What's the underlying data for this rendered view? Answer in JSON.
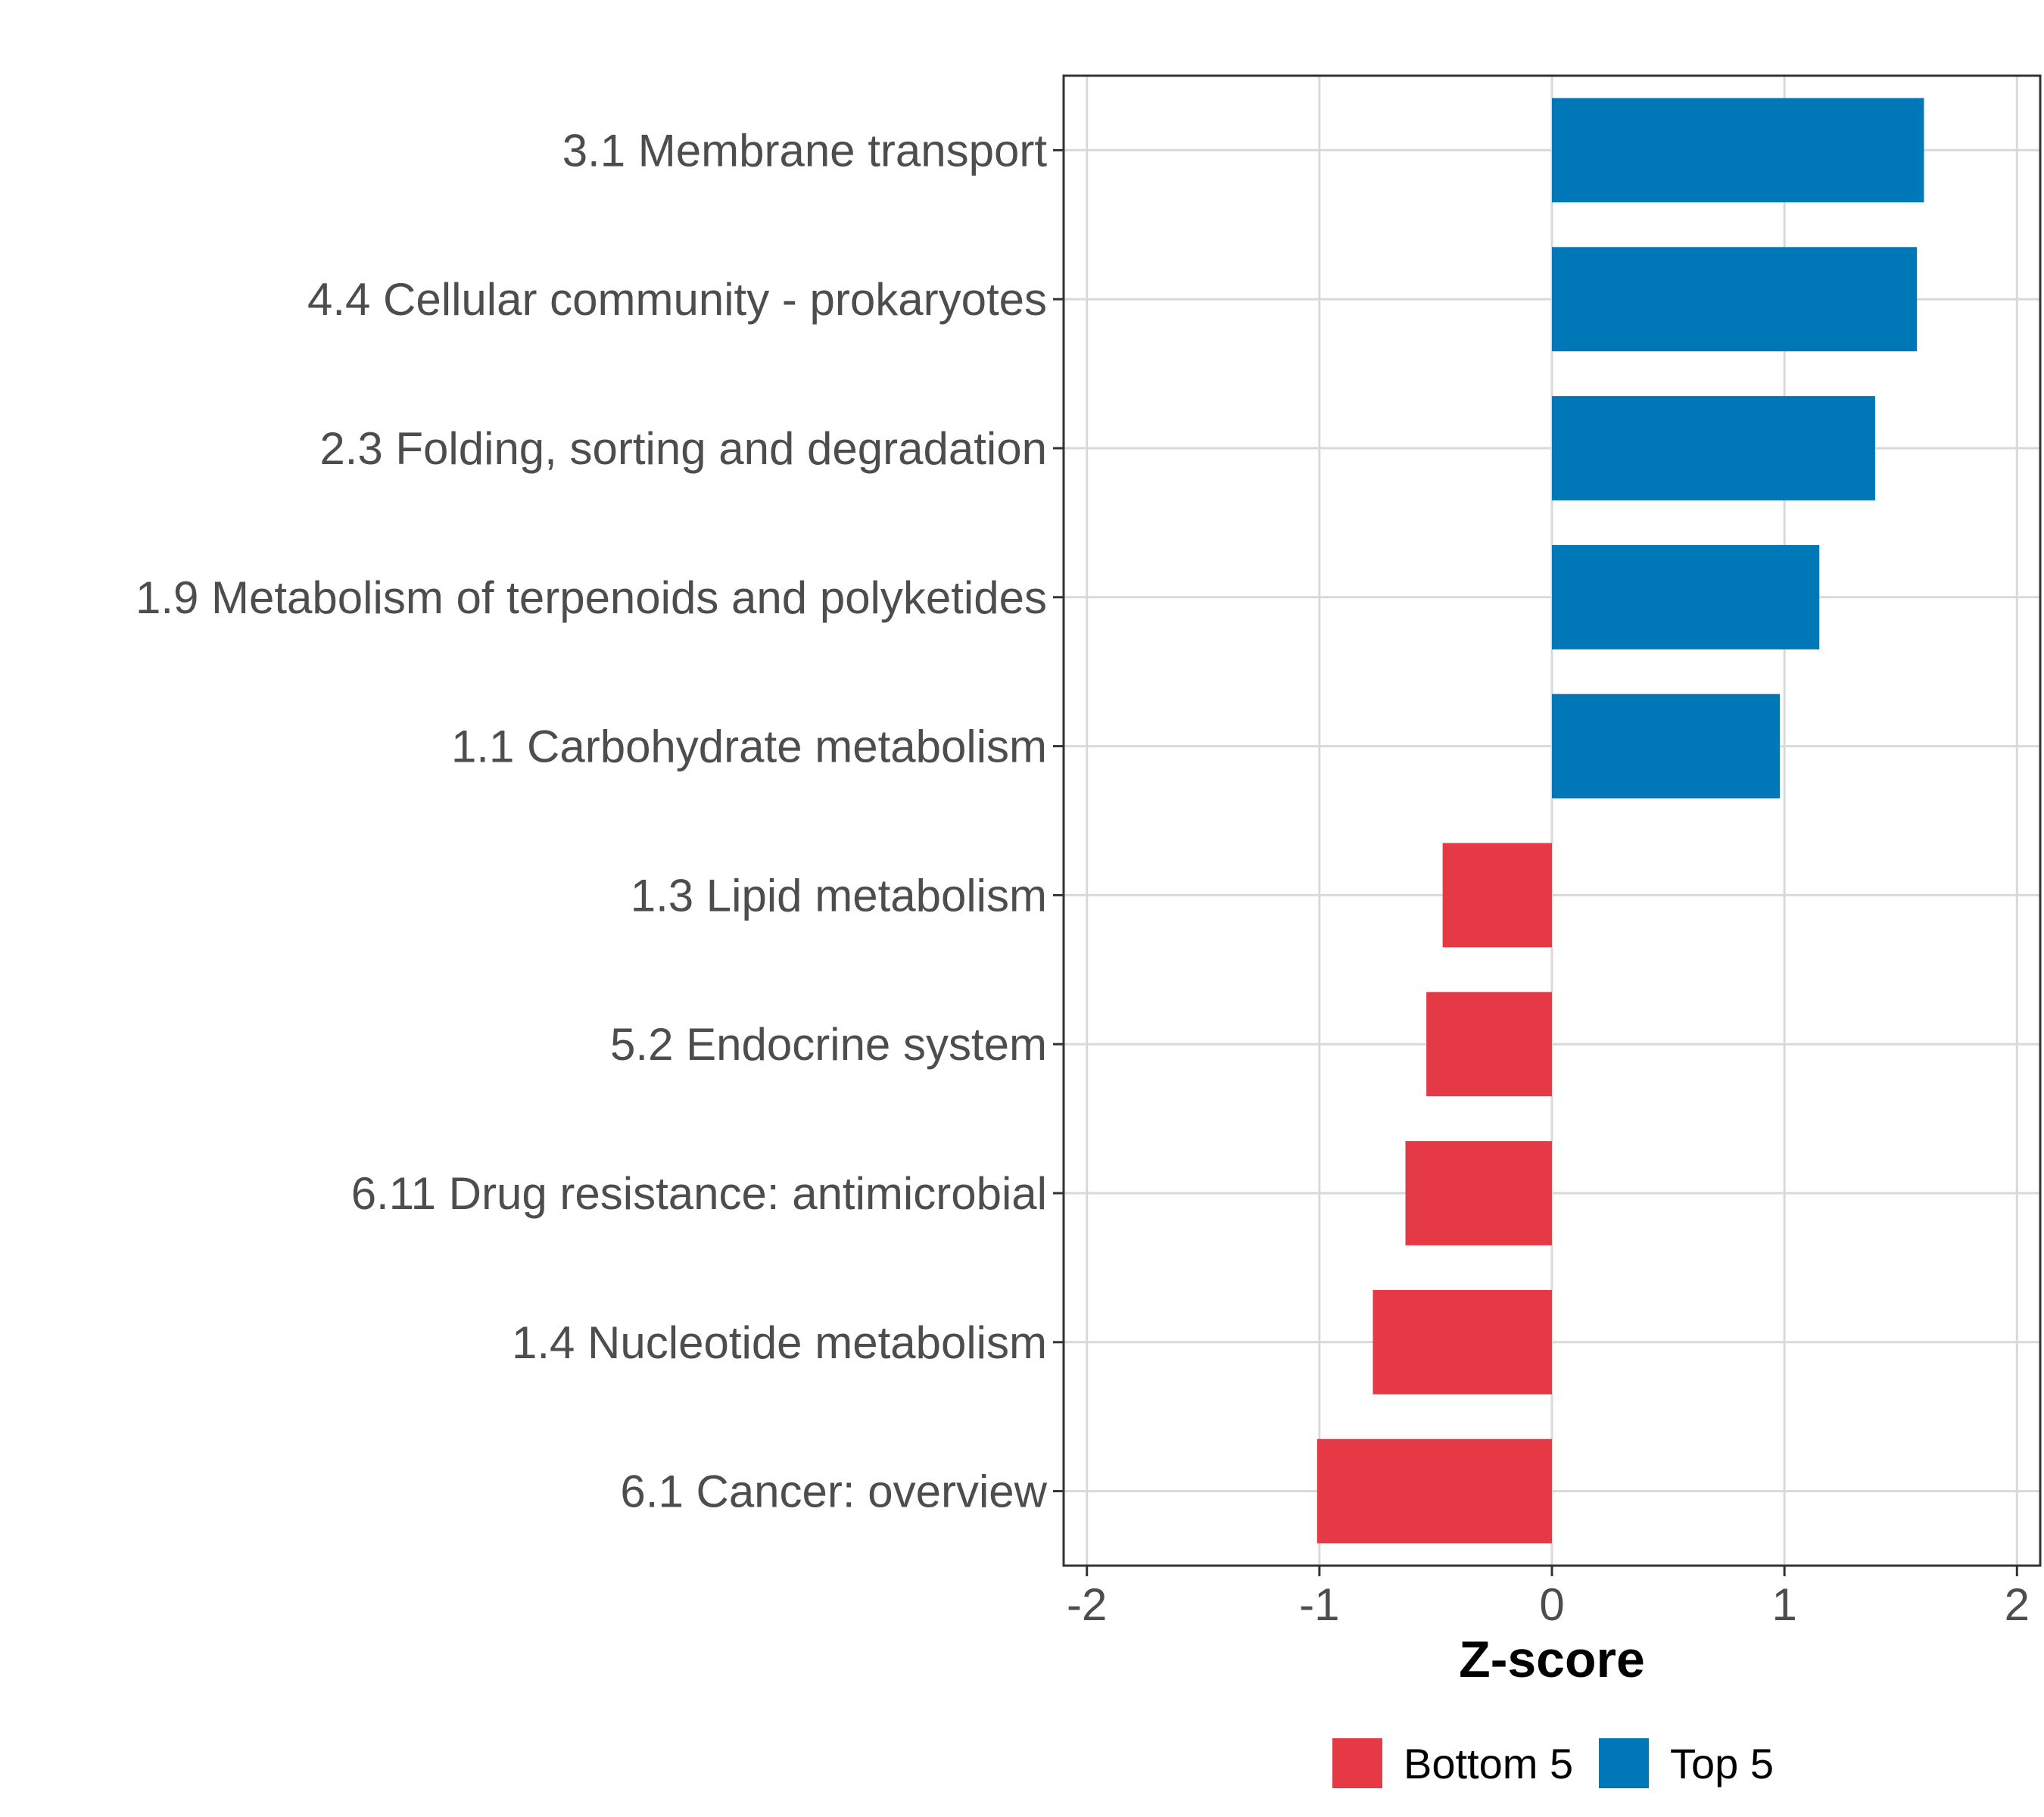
{
  "chart_data": {
    "type": "bar",
    "orientation": "horizontal",
    "title": "",
    "xlabel": "Z-score",
    "ylabel": "",
    "xlim": [
      -2.1,
      2.1
    ],
    "x_ticks": [
      -2,
      -1,
      0,
      1,
      2
    ],
    "x_tick_labels": [
      "-2",
      "-1",
      "0",
      "1",
      "2"
    ],
    "grid": true,
    "legend_position": "bottom",
    "categories": [
      "3.1 Membrane transport",
      "4.4 Cellular community - prokaryotes",
      "2.3 Folding, sorting and degradation",
      "1.9 Metabolism of terpenoids and polyketides",
      "1.1 Carbohydrate metabolism",
      "1.3 Lipid metabolism",
      "5.2 Endocrine system",
      "6.11 Drug resistance: antimicrobial",
      "1.4 Nucleotide metabolism",
      "6.1 Cancer: overview"
    ],
    "values": [
      1.6,
      1.57,
      1.39,
      1.15,
      0.98,
      -0.47,
      -0.54,
      -0.63,
      -0.77,
      -1.01
    ],
    "groups": [
      "Top 5",
      "Top 5",
      "Top 5",
      "Top 5",
      "Top 5",
      "Bottom 5",
      "Bottom 5",
      "Bottom 5",
      "Bottom 5",
      "Bottom 5"
    ],
    "legend": [
      {
        "name": "Bottom 5",
        "color": "#e63946"
      },
      {
        "name": "Top 5",
        "color": "#0077b6"
      }
    ]
  }
}
